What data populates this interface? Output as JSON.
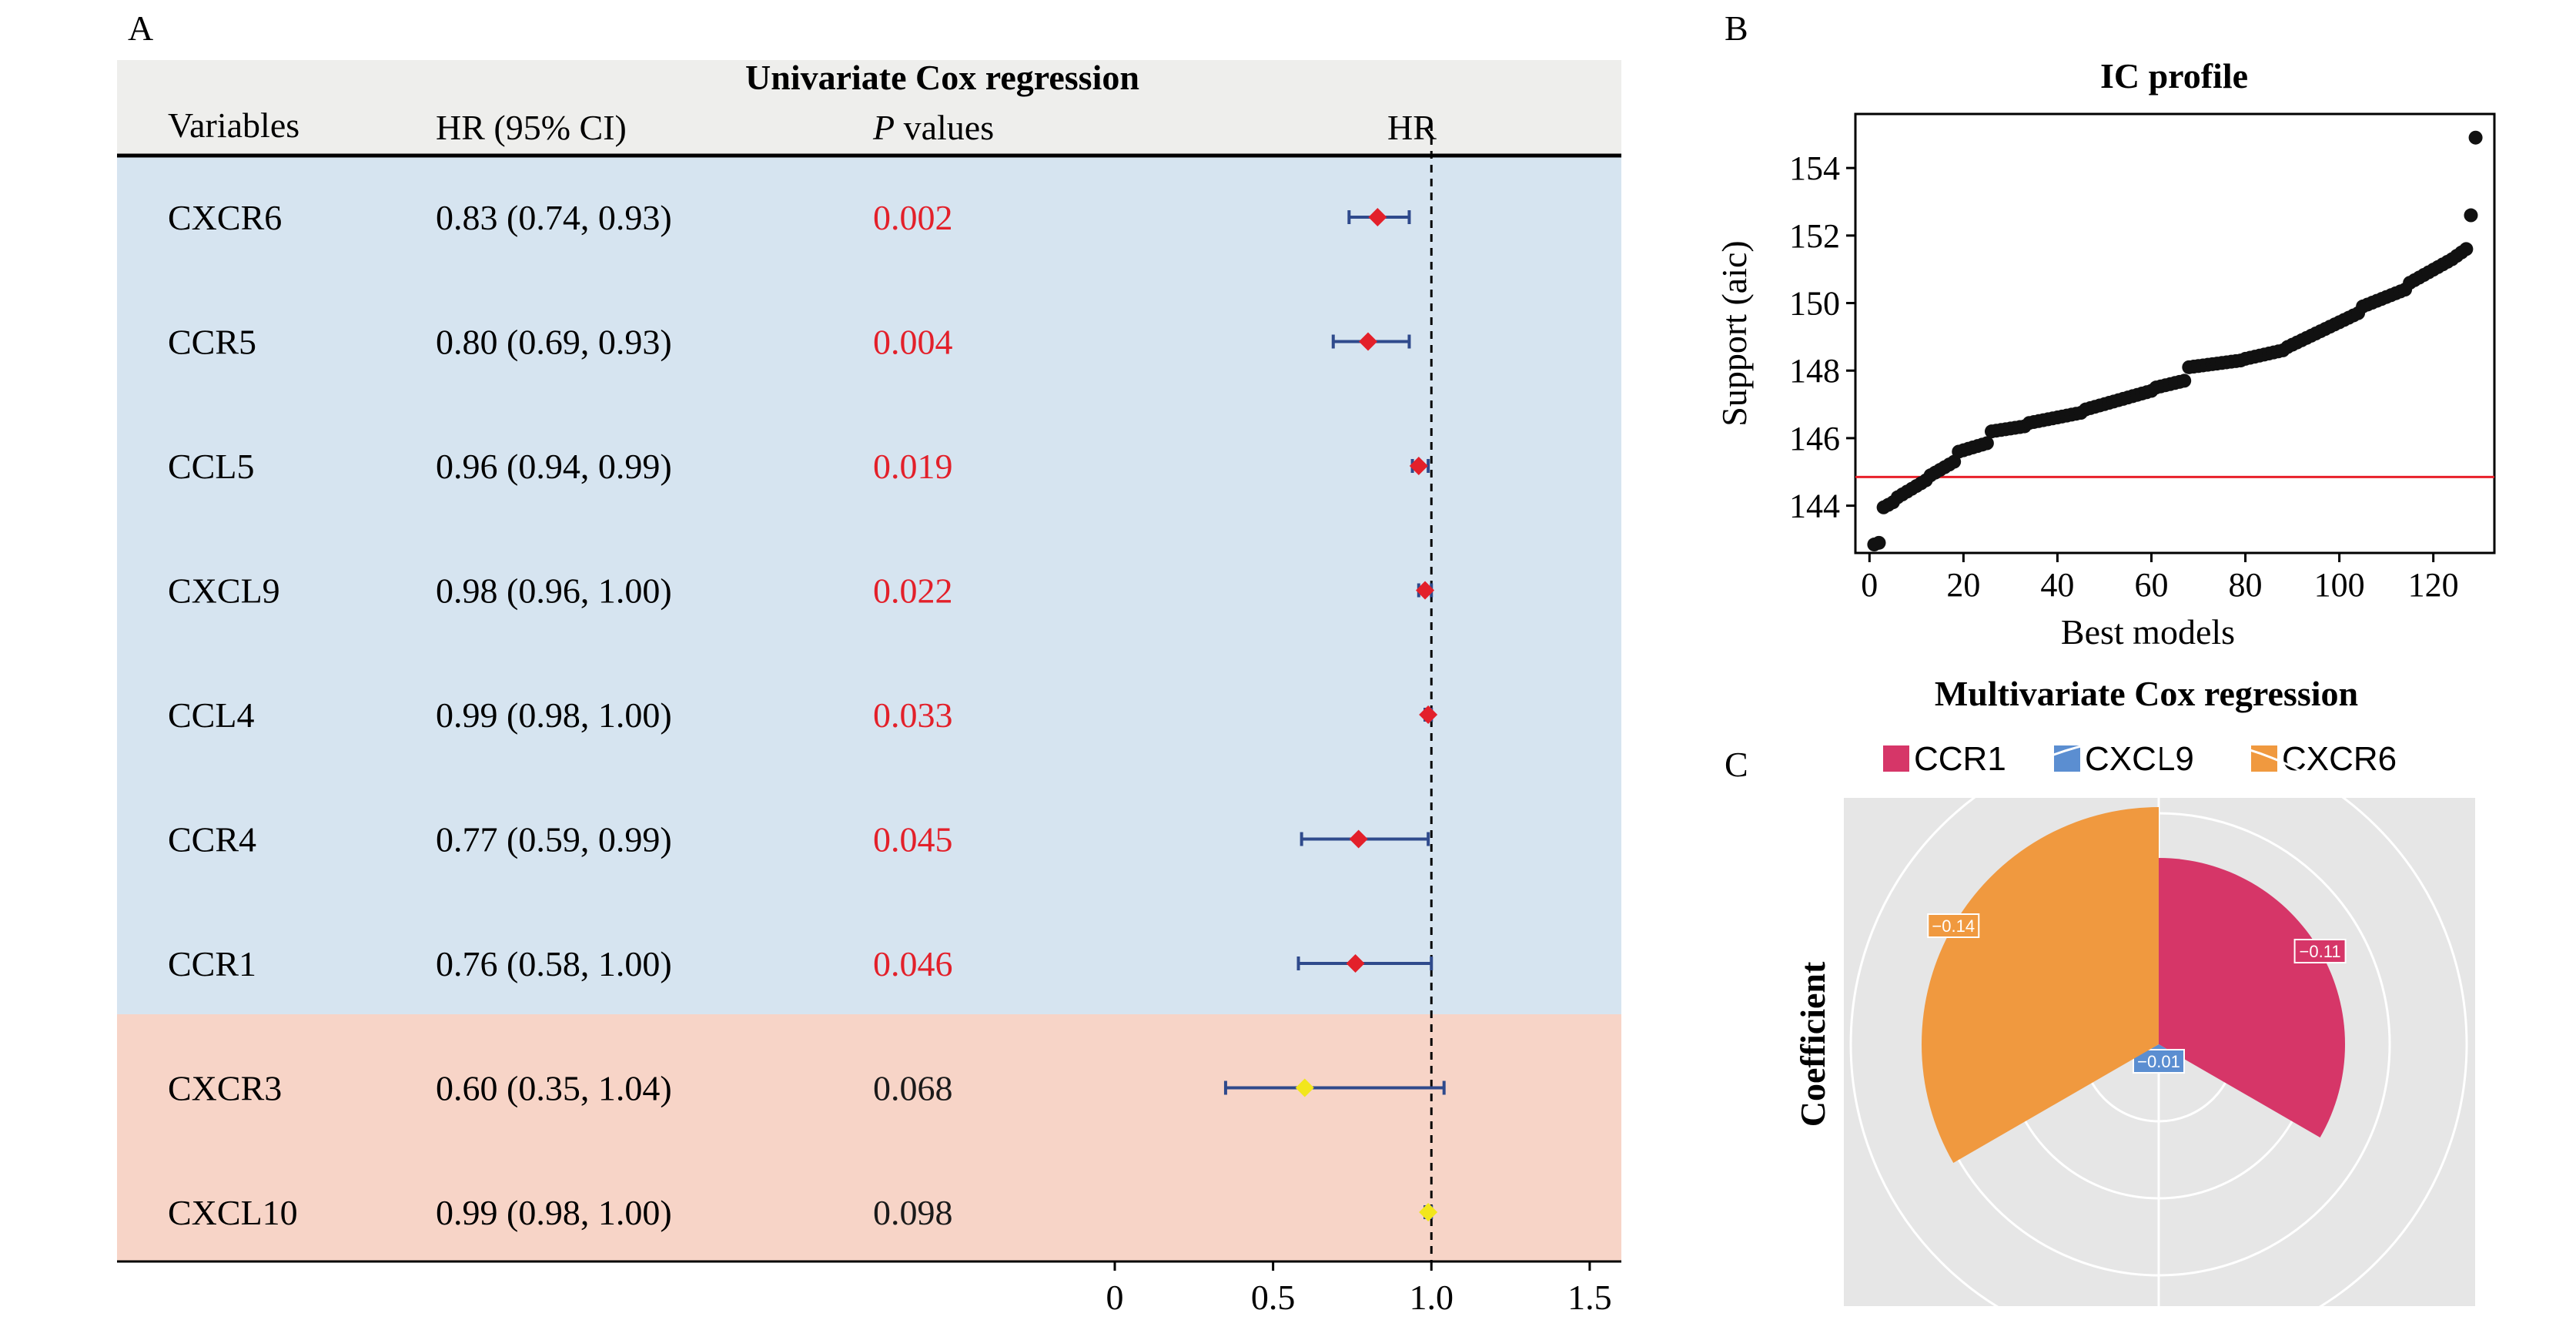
{
  "panel_labels": {
    "a": "A",
    "b": "B",
    "c": "C"
  },
  "chart_data": [
    {
      "type": "forest",
      "title": "Univariate Cox regression",
      "columns": {
        "variables": "Variables",
        "hr_ci": "HR (95% CI)",
        "p_italic": "P",
        "p_rest": " values",
        "hr": "HR"
      },
      "rows": [
        {
          "variable": "CXCR6",
          "hr_text": "0.83 (0.74, 0.93)",
          "p": "0.002",
          "hr": 0.83,
          "lo": 0.74,
          "hi": 0.93,
          "significant": true
        },
        {
          "variable": "CCR5",
          "hr_text": "0.80 (0.69, 0.93)",
          "p": "0.004",
          "hr": 0.8,
          "lo": 0.69,
          "hi": 0.93,
          "significant": true
        },
        {
          "variable": "CCL5",
          "hr_text": "0.96 (0.94, 0.99)",
          "p": "0.019",
          "hr": 0.96,
          "lo": 0.94,
          "hi": 0.99,
          "significant": true
        },
        {
          "variable": "CXCL9",
          "hr_text": "0.98 (0.96, 1.00)",
          "p": "0.022",
          "hr": 0.98,
          "lo": 0.96,
          "hi": 1.0,
          "significant": true
        },
        {
          "variable": "CCL4",
          "hr_text": "0.99 (0.98, 1.00)",
          "p": "0.033",
          "hr": 0.99,
          "lo": 0.98,
          "hi": 1.0,
          "significant": true
        },
        {
          "variable": "CCR4",
          "hr_text": "0.77 (0.59, 0.99)",
          "p": "0.045",
          "hr": 0.77,
          "lo": 0.59,
          "hi": 0.99,
          "significant": true
        },
        {
          "variable": "CCR1",
          "hr_text": "0.76 (0.58, 1.00)",
          "p": "0.046",
          "hr": 0.76,
          "lo": 0.58,
          "hi": 1.0,
          "significant": true
        },
        {
          "variable": "CXCR3",
          "hr_text": "0.60 (0.35, 1.04)",
          "p": "0.068",
          "hr": 0.6,
          "lo": 0.35,
          "hi": 1.04,
          "significant": false
        },
        {
          "variable": "CXCL10",
          "hr_text": "0.99 (0.98, 1.00)",
          "p": "0.098",
          "hr": 0.99,
          "lo": 0.98,
          "hi": 1.0,
          "significant": false
        }
      ],
      "xlim": [
        0,
        1.6
      ],
      "xticks": [
        0,
        0.5,
        1.0,
        1.5
      ],
      "xtick_labels": [
        "0",
        "0.5",
        "1.0",
        "1.5"
      ],
      "reference_line": 1.0,
      "colors": {
        "significant_band": "#d6e4f0",
        "nonsignificant_band": "#f7d4c7",
        "header_band": "#eeeeec",
        "significant_marker": "#e3202a",
        "nonsignificant_marker": "#f2e61c",
        "ci_line": "#2f4a8c",
        "p_significant": "#e3202a"
      }
    },
    {
      "type": "scatter",
      "title": "IC profile",
      "xlabel": "Best models",
      "ylabel": "Support (aic)",
      "xlim": [
        -3,
        133
      ],
      "ylim": [
        142.6,
        155.6
      ],
      "xticks": [
        0,
        20,
        40,
        60,
        80,
        100,
        120
      ],
      "yticks": [
        144,
        146,
        148,
        150,
        152,
        154
      ],
      "reference_line": 144.85,
      "segments": [
        {
          "x_start": 1,
          "x_end": 2,
          "y_start": 142.85,
          "y_end": 142.9
        },
        {
          "x_start": 3,
          "x_end": 5,
          "y_start": 143.95,
          "y_end": 144.1
        },
        {
          "x_start": 6,
          "x_end": 12,
          "y_start": 144.25,
          "y_end": 144.75
        },
        {
          "x_start": 13,
          "x_end": 18,
          "y_start": 144.9,
          "y_end": 145.3
        },
        {
          "x_start": 19,
          "x_end": 25,
          "y_start": 145.6,
          "y_end": 145.85
        },
        {
          "x_start": 26,
          "x_end": 33,
          "y_start": 146.2,
          "y_end": 146.35
        },
        {
          "x_start": 34,
          "x_end": 45,
          "y_start": 146.45,
          "y_end": 146.75
        },
        {
          "x_start": 46,
          "x_end": 60,
          "y_start": 146.85,
          "y_end": 147.4
        },
        {
          "x_start": 61,
          "x_end": 67,
          "y_start": 147.5,
          "y_end": 147.7
        },
        {
          "x_start": 68,
          "x_end": 79,
          "y_start": 148.1,
          "y_end": 148.3
        },
        {
          "x_start": 80,
          "x_end": 88,
          "y_start": 148.35,
          "y_end": 148.6
        },
        {
          "x_start": 89,
          "x_end": 104,
          "y_start": 148.7,
          "y_end": 149.7
        },
        {
          "x_start": 105,
          "x_end": 114,
          "y_start": 149.9,
          "y_end": 150.4
        },
        {
          "x_start": 115,
          "x_end": 124,
          "y_start": 150.6,
          "y_end": 151.3
        },
        {
          "x_start": 125,
          "x_end": 127,
          "y_start": 151.4,
          "y_end": 151.6
        }
      ],
      "extra_points": [
        {
          "x": 128,
          "y": 152.6
        },
        {
          "x": 129,
          "y": 154.9
        }
      ],
      "colors": {
        "points": "#111111",
        "reference_line": "#e8202a"
      }
    },
    {
      "type": "polar-bar",
      "title": "Multivariate Cox regression",
      "ylabel": "Coefficient",
      "legend_position": "top",
      "series": [
        {
          "name": "CCR1",
          "value": -0.11,
          "label": "−0.11",
          "color": "#d63668"
        },
        {
          "name": "CXCL9",
          "value": -0.01,
          "label": "−0.01",
          "color": "#5b8ed1"
        },
        {
          "name": "CXCR6",
          "value": -0.14,
          "label": "−0.14",
          "color": "#f0993f"
        }
      ],
      "colors": {
        "panel_background": "#e6e6e6",
        "grid": "#ffffff"
      }
    }
  ]
}
